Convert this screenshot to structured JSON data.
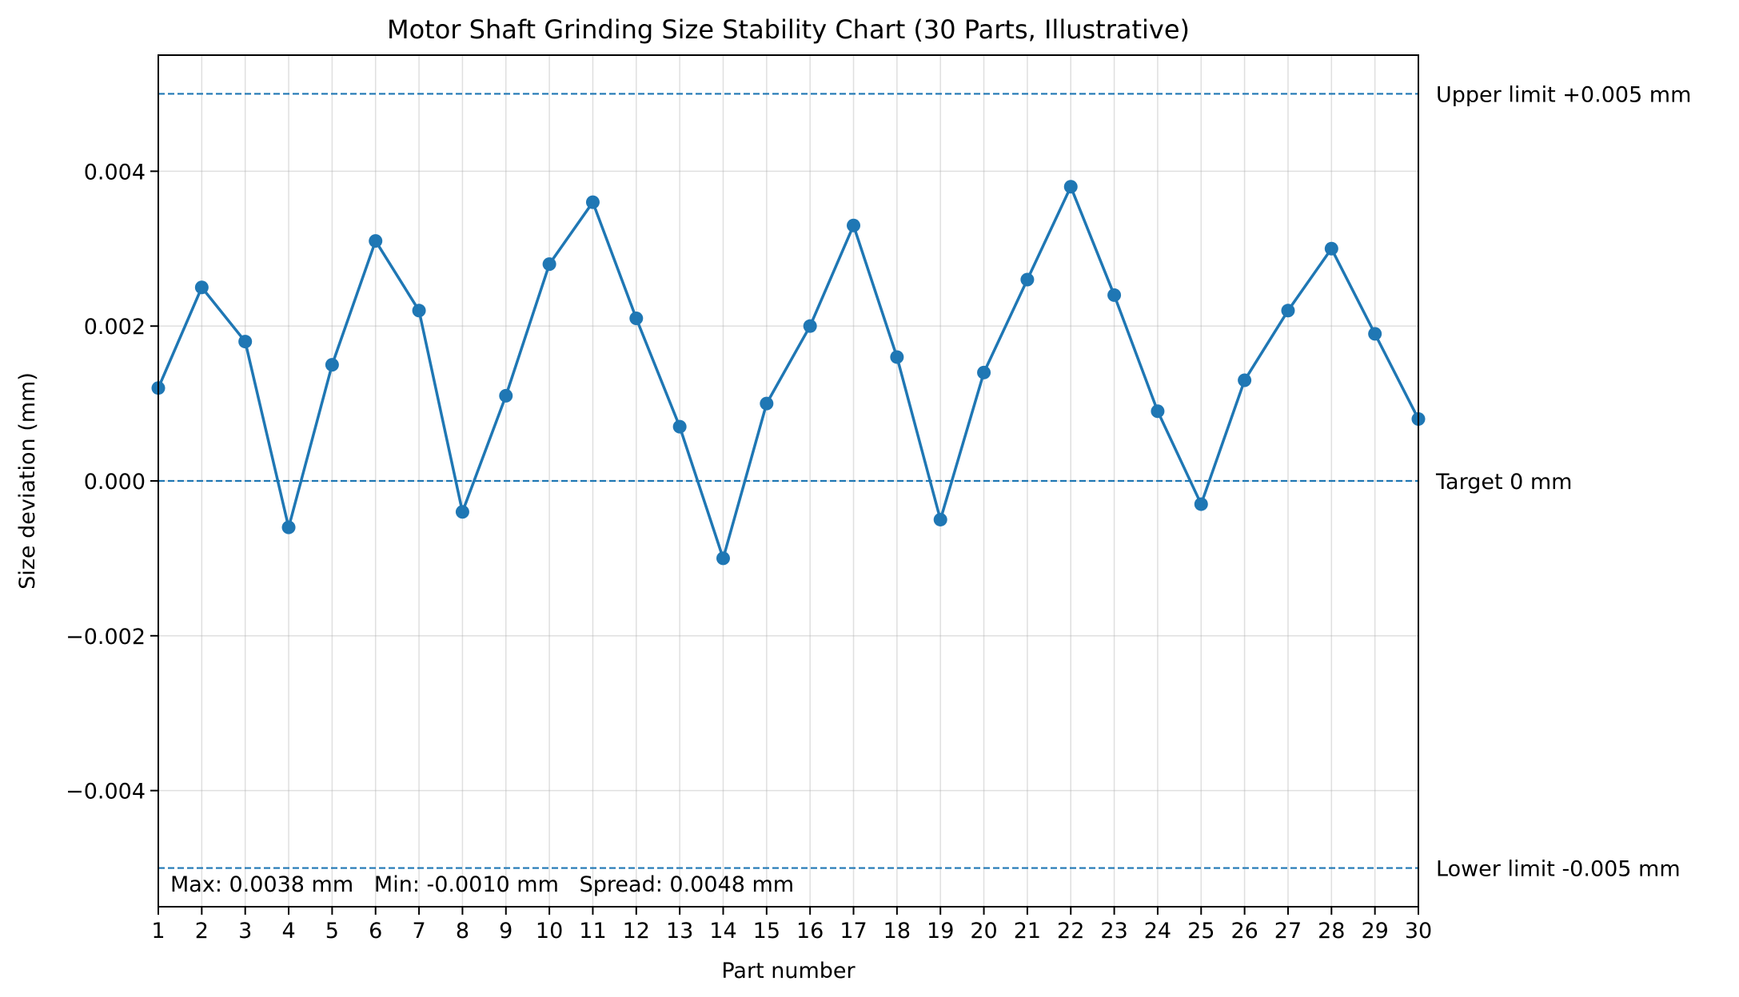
{
  "chart_data": {
    "type": "line",
    "title": "Motor Shaft Grinding Size Stability Chart (30 Parts, Illustrative)",
    "xlabel": "Part number",
    "ylabel": "Size deviation (mm)",
    "xlim": [
      1,
      30
    ],
    "ylim": [
      -0.0055,
      0.0055
    ],
    "grid": true,
    "x": [
      1,
      2,
      3,
      4,
      5,
      6,
      7,
      8,
      9,
      10,
      11,
      12,
      13,
      14,
      15,
      16,
      17,
      18,
      19,
      20,
      21,
      22,
      23,
      24,
      25,
      26,
      27,
      28,
      29,
      30
    ],
    "x_tick_labels": [
      "1",
      "2",
      "3",
      "4",
      "5",
      "6",
      "7",
      "8",
      "9",
      "10",
      "11",
      "12",
      "13",
      "14",
      "15",
      "16",
      "17",
      "18",
      "19",
      "20",
      "21",
      "22",
      "23",
      "24",
      "25",
      "26",
      "27",
      "28",
      "29",
      "30"
    ],
    "y_ticks": [
      {
        "value": 0.004,
        "label": "0.004"
      },
      {
        "value": 0.002,
        "label": "0.002"
      },
      {
        "value": 0.0,
        "label": "0.000"
      },
      {
        "value": -0.002,
        "label": "−0.002"
      },
      {
        "value": -0.004,
        "label": "−0.004"
      }
    ],
    "series": [
      {
        "color": "#1f77b4",
        "marker": "circle",
        "values": [
          0.0012,
          0.0025,
          0.0018,
          -0.0006,
          0.0015,
          0.0031,
          0.0022,
          -0.0004,
          0.0011,
          0.0028,
          0.0036,
          0.0021,
          0.0007,
          -0.001,
          0.001,
          0.002,
          0.0033,
          0.0016,
          -0.0005,
          0.0014,
          0.0026,
          0.0038,
          0.0024,
          0.0009,
          -0.0003,
          0.0013,
          0.0022,
          0.003,
          0.0019,
          0.0008
        ]
      }
    ],
    "reference_lines": [
      {
        "value": 0.005,
        "label": "Upper limit +0.005 mm",
        "color": "#1f77b4",
        "style": "dashed"
      },
      {
        "value": 0.0,
        "label": "Target 0 mm",
        "color": "#1f77b4",
        "style": "dashed"
      },
      {
        "value": -0.005,
        "label": "Lower limit -0.005 mm",
        "color": "#1f77b4",
        "style": "dashed"
      }
    ],
    "stats_annotation": "Max: 0.0038 mm   Min: -0.0010 mm   Spread: 0.0048 mm"
  }
}
